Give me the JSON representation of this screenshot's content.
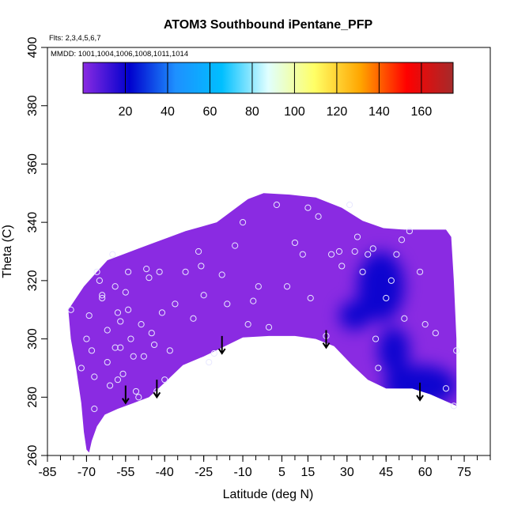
{
  "chart_data": {
    "type": "heatmap",
    "title": "ATOM3 Southbound iPentane_PFP",
    "flights_label": "Flts: 2,3,4,5,6,7",
    "mmdd_label": "MMDD: 1001,1004,1006,1008,1011,1014",
    "xlabel": "Latitude (deg N)",
    "ylabel": "Theta (C)",
    "xlim": [
      -85,
      85
    ],
    "ylim": [
      260,
      400
    ],
    "x_ticks": [
      "-85",
      "-70",
      "-55",
      "-40",
      "-25",
      "-10",
      "5",
      "15",
      "30",
      "45",
      "60",
      "75"
    ],
    "x_tick_values": [
      -85,
      -70,
      -55,
      -40,
      -25,
      -10,
      5,
      15,
      30,
      45,
      60,
      75
    ],
    "y_ticks": [
      "260",
      "280",
      "300",
      "320",
      "340",
      "360",
      "380",
      "400"
    ],
    "y_tick_values": [
      260,
      280,
      300,
      320,
      340,
      360,
      380,
      400
    ],
    "colorbar": {
      "range": [
        0,
        175
      ],
      "tick_labels": [
        "20",
        "40",
        "60",
        "80",
        "100",
        "120",
        "140",
        "160"
      ],
      "tick_values": [
        20,
        40,
        60,
        80,
        100,
        120,
        140,
        160
      ],
      "colors": [
        "#8a2be2",
        "#0000cd",
        "#1e90ff",
        "#00bfff",
        "#e0ffff",
        "#ffff66",
        "#ffa500",
        "#ff0000",
        "#a52a2a"
      ]
    },
    "field_color_typical": "#8a2be2",
    "field_color_low": "#0000cd",
    "domain": {
      "upper_boundary": [
        [
          -77,
          310
        ],
        [
          -71,
          318
        ],
        [
          -66,
          323
        ],
        [
          -62,
          327
        ],
        [
          -56,
          329
        ],
        [
          -50,
          331
        ],
        [
          -44,
          333
        ],
        [
          -38,
          335
        ],
        [
          -32,
          337
        ],
        [
          -26,
          338.5
        ],
        [
          -20,
          340
        ],
        [
          -14,
          344
        ],
        [
          -8,
          348
        ],
        [
          -2,
          350
        ],
        [
          8,
          349.5
        ],
        [
          18,
          348.5
        ],
        [
          28,
          345
        ],
        [
          36,
          340.5
        ],
        [
          44,
          338
        ],
        [
          52,
          337.5
        ],
        [
          60,
          337.5
        ],
        [
          68,
          337.5
        ],
        [
          70,
          335
        ],
        [
          71,
          320
        ],
        [
          72,
          300
        ],
        [
          72,
          277
        ]
      ],
      "lower_boundary": [
        [
          72,
          277
        ],
        [
          62,
          281
        ],
        [
          55,
          283
        ],
        [
          45,
          283
        ],
        [
          38,
          286
        ],
        [
          32,
          291
        ],
        [
          25,
          297.5
        ],
        [
          18,
          300
        ],
        [
          10,
          301
        ],
        [
          0,
          301
        ],
        [
          -10,
          300.5
        ],
        [
          -18,
          297
        ],
        [
          -25,
          294
        ],
        [
          -33,
          291
        ],
        [
          -40,
          285
        ],
        [
          -46,
          280
        ],
        [
          -52,
          278
        ],
        [
          -58,
          276
        ],
        [
          -63,
          274
        ],
        [
          -66,
          270
        ],
        [
          -68,
          265
        ],
        [
          -69,
          261
        ],
        [
          -70,
          262
        ],
        [
          -71,
          268
        ],
        [
          -72,
          278
        ],
        [
          -74,
          290
        ],
        [
          -76,
          300
        ],
        [
          -77,
          310
        ]
      ]
    },
    "low_regions": [
      {
        "lat": 43,
        "theta": 318,
        "lat_radius": 9,
        "theta_radius": 12,
        "value": 5
      },
      {
        "lat": 33,
        "theta": 308,
        "lat_radius": 6,
        "theta_radius": 5,
        "value": 12
      },
      {
        "lat": 58,
        "theta": 284,
        "lat_radius": 14,
        "theta_radius": 7,
        "value": 6
      },
      {
        "lat": 48,
        "theta": 296,
        "lat_radius": 6,
        "theta_radius": 8,
        "value": 12
      }
    ],
    "sample_points": [
      [
        -76,
        310
      ],
      [
        -72,
        290
      ],
      [
        -70,
        300
      ],
      [
        -69,
        308
      ],
      [
        -68,
        296
      ],
      [
        -67,
        287
      ],
      [
        -67,
        276
      ],
      [
        -66,
        323
      ],
      [
        -65,
        320
      ],
      [
        -64,
        315
      ],
      [
        -64,
        314
      ],
      [
        -62,
        303
      ],
      [
        -62,
        292
      ],
      [
        -61,
        284
      ],
      [
        -60,
        329
      ],
      [
        -59,
        318
      ],
      [
        -59,
        297
      ],
      [
        -58,
        286
      ],
      [
        -58,
        309
      ],
      [
        -57,
        306
      ],
      [
        -57,
        297
      ],
      [
        -56,
        288
      ],
      [
        -55,
        316
      ],
      [
        -54,
        323
      ],
      [
        -54,
        310
      ],
      [
        -53,
        300
      ],
      [
        -52,
        294
      ],
      [
        -51,
        282
      ],
      [
        -50,
        280
      ],
      [
        -49,
        305
      ],
      [
        -48,
        294
      ],
      [
        -47,
        324
      ],
      [
        -46,
        321
      ],
      [
        -45,
        302
      ],
      [
        -44,
        298
      ],
      [
        -43,
        282
      ],
      [
        -42,
        323
      ],
      [
        -41,
        309
      ],
      [
        -40,
        286
      ],
      [
        -38,
        296
      ],
      [
        -36,
        312
      ],
      [
        -32,
        323
      ],
      [
        -29,
        307
      ],
      [
        -27,
        330
      ],
      [
        -26,
        325
      ],
      [
        -25,
        315
      ],
      [
        -23,
        292
      ],
      [
        -21,
        295
      ],
      [
        -18,
        322
      ],
      [
        -16,
        312
      ],
      [
        -13,
        332
      ],
      [
        -10,
        340
      ],
      [
        -8,
        305
      ],
      [
        -6,
        313
      ],
      [
        -4,
        318
      ],
      [
        0,
        304
      ],
      [
        3,
        346
      ],
      [
        7,
        318
      ],
      [
        10,
        333
      ],
      [
        13,
        329
      ],
      [
        15,
        345
      ],
      [
        16,
        314
      ],
      [
        19,
        342
      ],
      [
        22,
        301
      ],
      [
        24,
        329
      ],
      [
        27,
        330
      ],
      [
        28,
        325
      ],
      [
        31,
        346
      ],
      [
        33,
        330
      ],
      [
        34,
        335
      ],
      [
        36,
        323
      ],
      [
        38,
        329
      ],
      [
        40,
        331
      ],
      [
        41,
        300
      ],
      [
        42,
        290
      ],
      [
        45,
        314
      ],
      [
        47,
        320
      ],
      [
        49,
        329
      ],
      [
        51,
        334
      ],
      [
        52,
        307
      ],
      [
        54,
        337
      ],
      [
        58,
        323
      ],
      [
        60,
        305
      ],
      [
        64,
        302
      ],
      [
        68,
        283
      ],
      [
        71,
        277
      ],
      [
        72,
        296
      ]
    ],
    "arrows": [
      {
        "lat": -55,
        "theta_top": 284,
        "theta_bottom": 278
      },
      {
        "lat": -43,
        "theta_top": 286,
        "theta_bottom": 280
      },
      {
        "lat": -18,
        "theta_top": 301,
        "theta_bottom": 295
      },
      {
        "lat": 22,
        "theta_top": 303,
        "theta_bottom": 297
      },
      {
        "lat": 58,
        "theta_top": 285,
        "theta_bottom": 279
      }
    ]
  }
}
